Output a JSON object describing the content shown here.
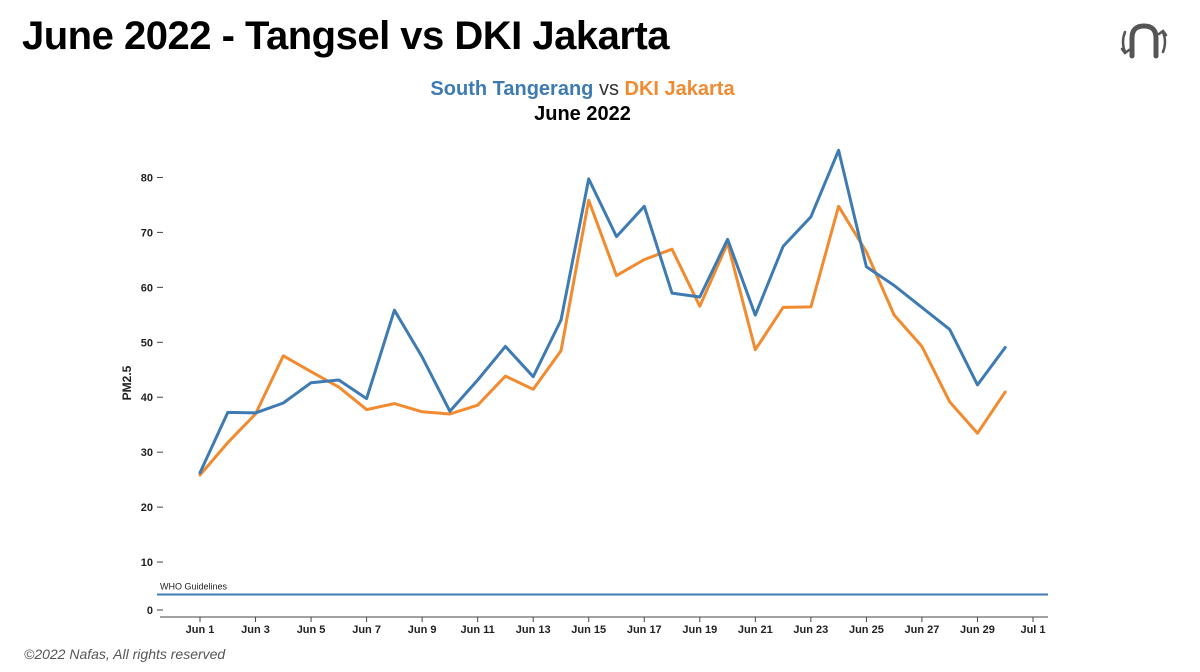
{
  "slide": {
    "title": "June 2022 - Tangsel vs DKI Jakarta",
    "footer": "©2022 Nafas, All rights reserved",
    "logo_icon": "nafas-logo-icon"
  },
  "colors": {
    "south_tangerang": "#3e7bb3",
    "dki_jakarta": "#f28b30",
    "who_line": "#3e7bb3"
  },
  "chart_data": {
    "type": "line",
    "title_parts": {
      "series_a": "South Tangerang",
      "vs": "vs",
      "series_b": "DKI Jakarta"
    },
    "subtitle": "June 2022",
    "xlabel": "",
    "ylabel": "PM2.5",
    "ylim": [
      0,
      85
    ],
    "yticks": [
      0,
      10,
      20,
      30,
      40,
      50,
      60,
      70,
      80
    ],
    "xrange_days": [
      0,
      30.5
    ],
    "xtick_days": [
      1,
      3,
      5,
      7,
      9,
      11,
      13,
      15,
      17,
      19,
      21,
      23,
      25,
      27,
      29,
      31
    ],
    "xtick_labels": [
      "Jun 1",
      "Jun 3",
      "Jun 5",
      "Jun 7",
      "Jun 9",
      "Jun 11",
      "Jun 13",
      "Jun 15",
      "Jun 17",
      "Jun 19",
      "Jun 21",
      "Jun 23",
      "Jun 25",
      "Jun 27",
      "Jun 29",
      "Jul 1"
    ],
    "x": [
      1,
      2,
      3,
      4,
      5,
      6,
      7,
      8,
      9,
      10,
      11,
      12,
      13,
      14,
      15,
      16,
      17,
      18,
      19,
      20,
      21,
      22,
      23,
      24,
      25,
      26,
      27,
      28,
      29,
      30
    ],
    "series": [
      {
        "name": "South Tangerang",
        "color": "#3e7bb3",
        "values": [
          25.7,
          36.7,
          36.6,
          38.4,
          42.1,
          42.6,
          39.2,
          55.3,
          46.8,
          36.9,
          42.6,
          48.7,
          43.2,
          53.5,
          79.2,
          68.7,
          74.2,
          58.4,
          57.7,
          68.2,
          54.4,
          66.9,
          72.3,
          84.4,
          63.2,
          59.8,
          55.8,
          51.8,
          41.7,
          48.5
        ]
      },
      {
        "name": "DKI Jakarta",
        "color": "#f28b30",
        "values": [
          25.3,
          31.2,
          36.4,
          47.0,
          44.1,
          41.3,
          37.2,
          38.3,
          36.8,
          36.4,
          38.0,
          43.3,
          40.9,
          47.9,
          75.3,
          61.6,
          64.5,
          66.4,
          56.0,
          67.5,
          48.1,
          55.8,
          55.9,
          74.2,
          65.9,
          54.4,
          48.7,
          38.6,
          32.9,
          40.4
        ]
      }
    ],
    "reference_line": {
      "label": "WHO Guidelines",
      "value": 5
    }
  }
}
